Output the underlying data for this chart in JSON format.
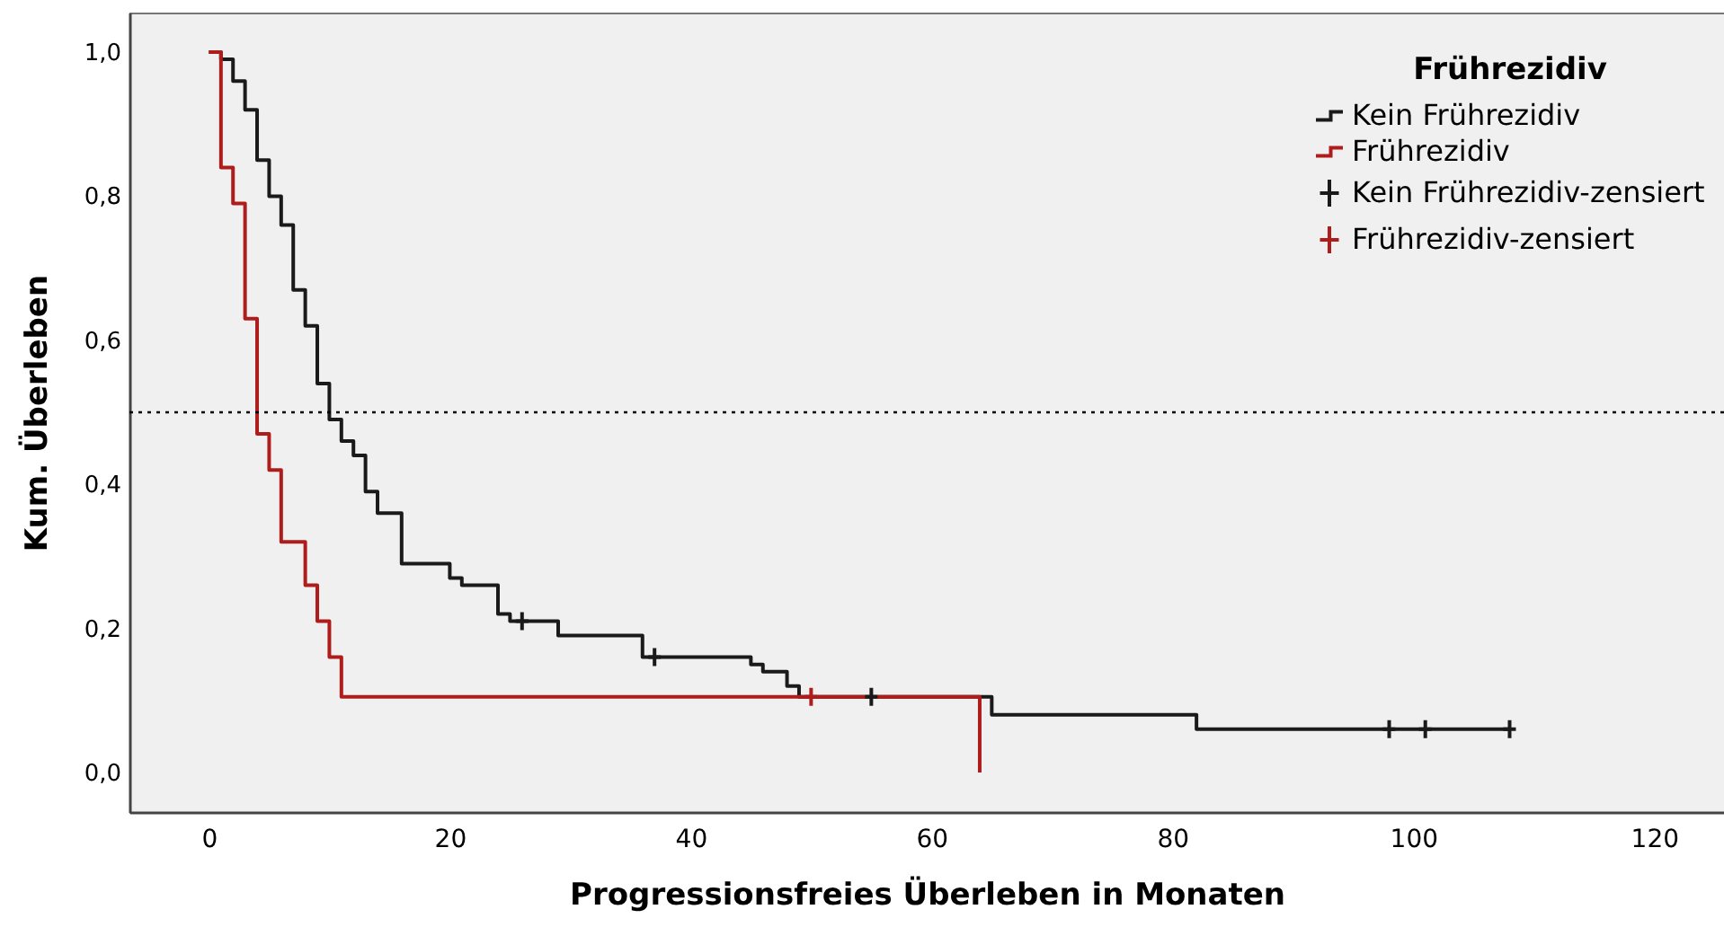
{
  "chart_data": {
    "type": "step",
    "xlabel": "Progressionsfreies Überleben in Monaten",
    "ylabel": "Kum. Überleben",
    "legend_title": "Frührezidiv",
    "legend": "top right",
    "xlim": [
      -6.6,
      125.8
    ],
    "xticks": [
      0,
      20,
      40,
      60,
      80,
      100,
      120
    ],
    "ylim": [
      -0.055,
      1.055
    ],
    "yticks": [
      {
        "value": 0,
        "label": "0,0"
      },
      {
        "value": 0.2,
        "label": "0,2"
      },
      {
        "value": 0.4,
        "label": "0,4"
      },
      {
        "value": 0.6,
        "label": "0,6"
      },
      {
        "value": 0.8,
        "label": "0,8"
      },
      {
        "value": 1,
        "label": "1,0"
      }
    ],
    "ref_lines": [
      {
        "axis": "y",
        "value": 0.5,
        "color": "#000000",
        "line_style": "dotted"
      }
    ],
    "series": [
      {
        "name": "Kein Frührezidiv",
        "color": "#1a1a1a",
        "x": [
          0,
          1,
          2,
          3,
          4,
          5,
          6,
          7,
          8,
          9,
          10,
          11,
          12,
          13,
          14,
          16,
          20,
          21,
          24,
          25,
          29,
          36,
          45,
          46,
          48,
          49,
          65,
          82,
          108
        ],
        "values": [
          1,
          0.99,
          0.96,
          0.92,
          0.85,
          0.8,
          0.76,
          0.67,
          0.62,
          0.54,
          0.49,
          0.46,
          0.44,
          0.39,
          0.36,
          0.29,
          0.27,
          0.26,
          0.22,
          0.21,
          0.19,
          0.16,
          0.15,
          0.14,
          0.12,
          0.105,
          0.08,
          0.06,
          0.06
        ]
      },
      {
        "name": "Frührezidiv",
        "color": "#ae1c1c",
        "x": [
          0,
          1,
          2,
          3,
          4,
          5,
          6,
          8,
          9,
          10,
          11,
          64
        ],
        "values": [
          1,
          0.84,
          0.79,
          0.63,
          0.47,
          0.42,
          0.32,
          0.26,
          0.21,
          0.16,
          0.105,
          0
        ]
      },
      {
        "name": "Kein Frührezidiv-zensiert",
        "type": "scatter",
        "marker": "cross",
        "color": "#1a1a1a",
        "x": [
          26,
          37,
          55,
          98,
          101,
          108
        ],
        "values": [
          0.21,
          0.16,
          0.105,
          0.06,
          0.06,
          0.06
        ]
      },
      {
        "name": "Frührezidiv-zensiert",
        "type": "scatter",
        "marker": "cross",
        "color": "#ae1c1c",
        "x": [
          50
        ],
        "values": [
          0.105
        ]
      }
    ]
  }
}
